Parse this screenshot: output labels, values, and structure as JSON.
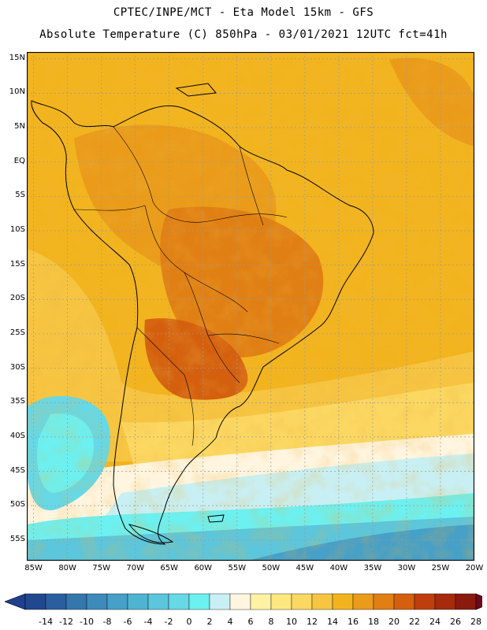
{
  "header": {
    "line1": "CPTEC/INPE/MCT -  Eta Model 15km - GFS",
    "line2": "Absolute Temperature (C) 850hPa - 03/01/2021 12UTC fct=41h"
  },
  "map": {
    "region": "South America",
    "variable": "Absolute Temperature (C) 850hPa",
    "lat_range": [
      -58,
      16
    ],
    "lon_range": [
      -86,
      -20
    ],
    "lat_ticks": [
      {
        "value": 15,
        "label": "15N"
      },
      {
        "value": 10,
        "label": "10N"
      },
      {
        "value": 5,
        "label": "5N"
      },
      {
        "value": 0,
        "label": "EQ"
      },
      {
        "value": -5,
        "label": "5S"
      },
      {
        "value": -10,
        "label": "10S"
      },
      {
        "value": -15,
        "label": "15S"
      },
      {
        "value": -20,
        "label": "20S"
      },
      {
        "value": -25,
        "label": "25S"
      },
      {
        "value": -30,
        "label": "30S"
      },
      {
        "value": -35,
        "label": "35S"
      },
      {
        "value": -40,
        "label": "40S"
      },
      {
        "value": -45,
        "label": "45S"
      },
      {
        "value": -50,
        "label": "50S"
      },
      {
        "value": -55,
        "label": "55S"
      }
    ],
    "lon_ticks": [
      {
        "value": -85,
        "label": "85W"
      },
      {
        "value": -80,
        "label": "80W"
      },
      {
        "value": -75,
        "label": "75W"
      },
      {
        "value": -70,
        "label": "70W"
      },
      {
        "value": -65,
        "label": "65W"
      },
      {
        "value": -60,
        "label": "60W"
      },
      {
        "value": -55,
        "label": "55W"
      },
      {
        "value": -50,
        "label": "50W"
      },
      {
        "value": -45,
        "label": "45W"
      },
      {
        "value": -40,
        "label": "40W"
      },
      {
        "value": -35,
        "label": "35W"
      },
      {
        "value": -30,
        "label": "30W"
      },
      {
        "value": -25,
        "label": "25W"
      },
      {
        "value": -20,
        "label": "20W"
      }
    ]
  },
  "colorbar": {
    "labels": [
      "-14",
      "-12",
      "-10",
      "-8",
      "-6",
      "-4",
      "-2",
      "0",
      "2",
      "4",
      "6",
      "8",
      "10",
      "12",
      "14",
      "16",
      "18",
      "20",
      "22",
      "24",
      "26",
      "28"
    ],
    "under_color": "#1f3f8f",
    "over_color": "#6a0a1a",
    "colors": [
      "#21478f",
      "#2a5e9e",
      "#3377ac",
      "#3d8bba",
      "#46a0c7",
      "#4fb4d2",
      "#5bc6dc",
      "#66d8e6",
      "#6cf0f0",
      "#c8f0f4",
      "#fff5e0",
      "#fff2a3",
      "#fde77f",
      "#fbd862",
      "#f6c542",
      "#f2b41e",
      "#ea9b1a",
      "#e07f14",
      "#d4600f",
      "#bf3f0c",
      "#a62b0c",
      "#8b1a0e"
    ]
  }
}
